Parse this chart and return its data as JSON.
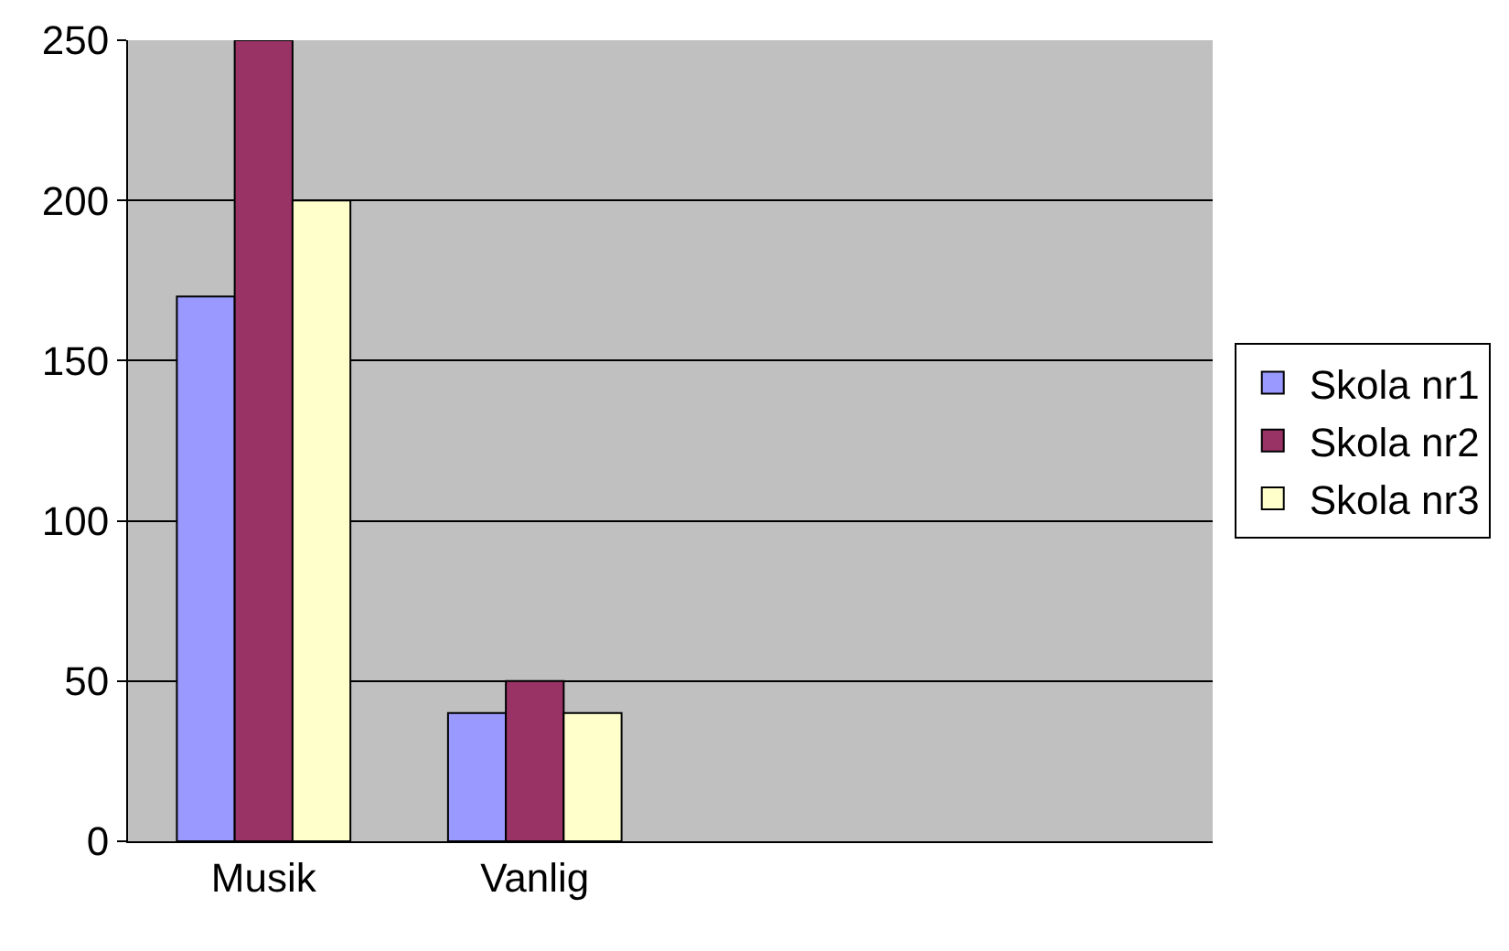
{
  "chart_data": {
    "type": "bar",
    "categories": [
      "Musik",
      "Vanlig",
      null,
      null
    ],
    "series": [
      {
        "name": "Skola nr1",
        "color": "#9999ff",
        "values": [
          170,
          40,
          null,
          null
        ]
      },
      {
        "name": "Skola nr2",
        "color": "#993366",
        "values": [
          250,
          50,
          null,
          null
        ]
      },
      {
        "name": "Skola nr3",
        "color": "#ffffcc",
        "values": [
          200,
          40,
          null,
          null
        ]
      }
    ],
    "ylim": [
      0,
      250
    ],
    "yticks": [
      0,
      50,
      100,
      150,
      200,
      250
    ],
    "grid": "y",
    "legend": "right"
  }
}
